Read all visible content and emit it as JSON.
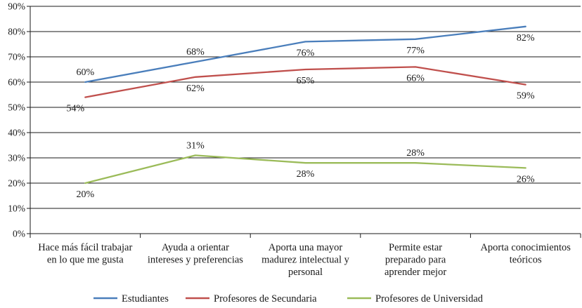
{
  "chart_data": {
    "type": "line",
    "title": "",
    "xlabel": "",
    "ylabel": "",
    "ylim": [
      0,
      90
    ],
    "yticks": [
      "0%",
      "10%",
      "20%",
      "30%",
      "40%",
      "50%",
      "60%",
      "70%",
      "80%",
      "90%"
    ],
    "grid": true,
    "legend_position": "bottom",
    "categories": [
      [
        "Hace más fácil trabajar",
        "en lo  que me gusta"
      ],
      [
        "Ayuda a orientar",
        "intereses y preferencias"
      ],
      [
        "Aporta una mayor",
        "madurez intelectual  y",
        "personal"
      ],
      [
        "Permite estar",
        "preparado para",
        "aprender mejor"
      ],
      [
        "Aporta conocimientos",
        "teóricos"
      ]
    ],
    "series": [
      {
        "name": "Estudiantes",
        "color": "#4a7ebb",
        "values": [
          60,
          68,
          76,
          77,
          82
        ],
        "labels": [
          "60%",
          "68%",
          "76%",
          "77%",
          "82%"
        ]
      },
      {
        "name": "Profesores de Secundaria",
        "color": "#c0504d",
        "values": [
          54,
          62,
          65,
          66,
          59
        ],
        "labels": [
          "54%",
          "62%",
          "65%",
          "66%",
          "59%"
        ]
      },
      {
        "name": "Profesores de Universidad",
        "color": "#9bbb59",
        "values": [
          20,
          31,
          28,
          28,
          26
        ],
        "labels": [
          "20%",
          "31%",
          "28%",
          "28%",
          "26%"
        ]
      }
    ]
  }
}
